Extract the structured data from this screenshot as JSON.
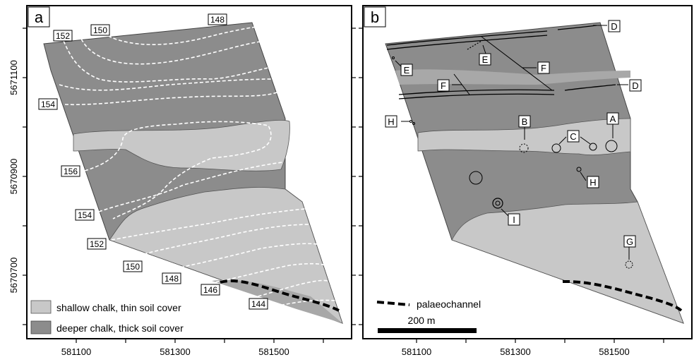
{
  "panels": {
    "a": {
      "label": "a"
    },
    "b": {
      "label": "b"
    }
  },
  "axes": {
    "x_ticks": [
      "581100",
      "581300",
      "581500"
    ],
    "y_ticks": [
      "5671100",
      "5670900",
      "5670700"
    ]
  },
  "contours": {
    "c152_top": "152",
    "c150_top": "150",
    "c148_top": "148",
    "c154": "154",
    "c156": "156",
    "c154_low": "154",
    "c152_low": "152",
    "c150_low": "150",
    "c148_low": "148",
    "c146": "146",
    "c144": "144"
  },
  "legend_a": {
    "shallow": "shallow chalk, thin soil cover",
    "deep": "deeper chalk, thick soil cover"
  },
  "legend_b": {
    "palaeochannel": "palaeochannel",
    "scale": "200 m"
  },
  "features": {
    "A": "A",
    "B": "B",
    "C": "C",
    "D": "D",
    "E": "E",
    "F": "F",
    "G": "G",
    "H": "H",
    "I": "I"
  },
  "colors": {
    "light_grey": "#c8c8c8",
    "dark_grey": "#8c8c8c",
    "medium_grey": "#a8a8a8",
    "contour": "#ffffff",
    "palaeochannel": "#000000"
  }
}
